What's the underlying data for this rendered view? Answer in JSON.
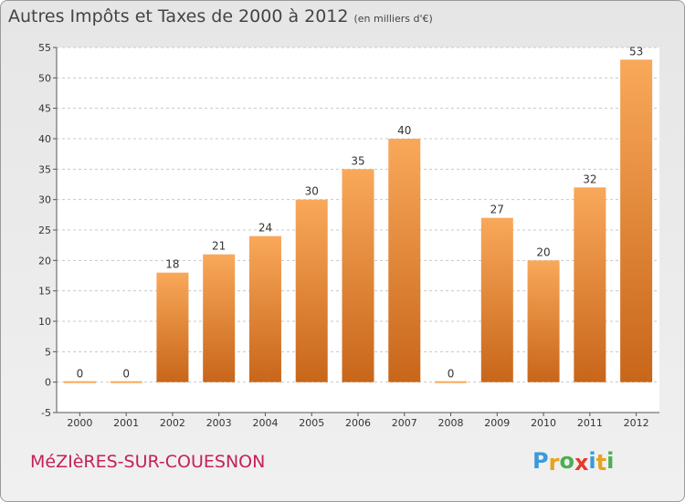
{
  "title": "Autres Impôts et Taxes de 2000 à 2012",
  "title_unit": "(en milliers d'€)",
  "commune": "MéZIèRES-SUR-COUESNON",
  "logo": {
    "letters": [
      "P",
      "r",
      "o",
      "x",
      "i",
      "t",
      "i"
    ],
    "colors": [
      "#3a9ad9",
      "#e8a21c",
      "#4caf50",
      "#e63a2e",
      "#3a9ad9",
      "#e8a21c",
      "#4caf50"
    ]
  },
  "colors": {
    "bar_light": "#f9a85a",
    "bar_dark": "#c8661a",
    "title": "#444444",
    "commune": "#c5205a"
  },
  "chart_data": {
    "type": "bar",
    "categories": [
      "2000",
      "2001",
      "2002",
      "2003",
      "2004",
      "2005",
      "2006",
      "2007",
      "2008",
      "2009",
      "2010",
      "2011",
      "2012"
    ],
    "values": [
      0,
      0,
      18,
      21,
      24,
      30,
      35,
      40,
      0,
      27,
      20,
      32,
      53
    ],
    "data_labels": [
      "0",
      "0",
      "18",
      "21",
      "24",
      "30",
      "35",
      "40",
      "0",
      "27",
      "20",
      "32",
      "53"
    ],
    "y_ticks": [
      -5,
      0,
      5,
      10,
      15,
      20,
      25,
      30,
      35,
      40,
      45,
      50,
      55
    ],
    "ylim": [
      -5,
      55
    ],
    "grid": "horizontal dashed",
    "xlabel": "",
    "ylabel": ""
  }
}
